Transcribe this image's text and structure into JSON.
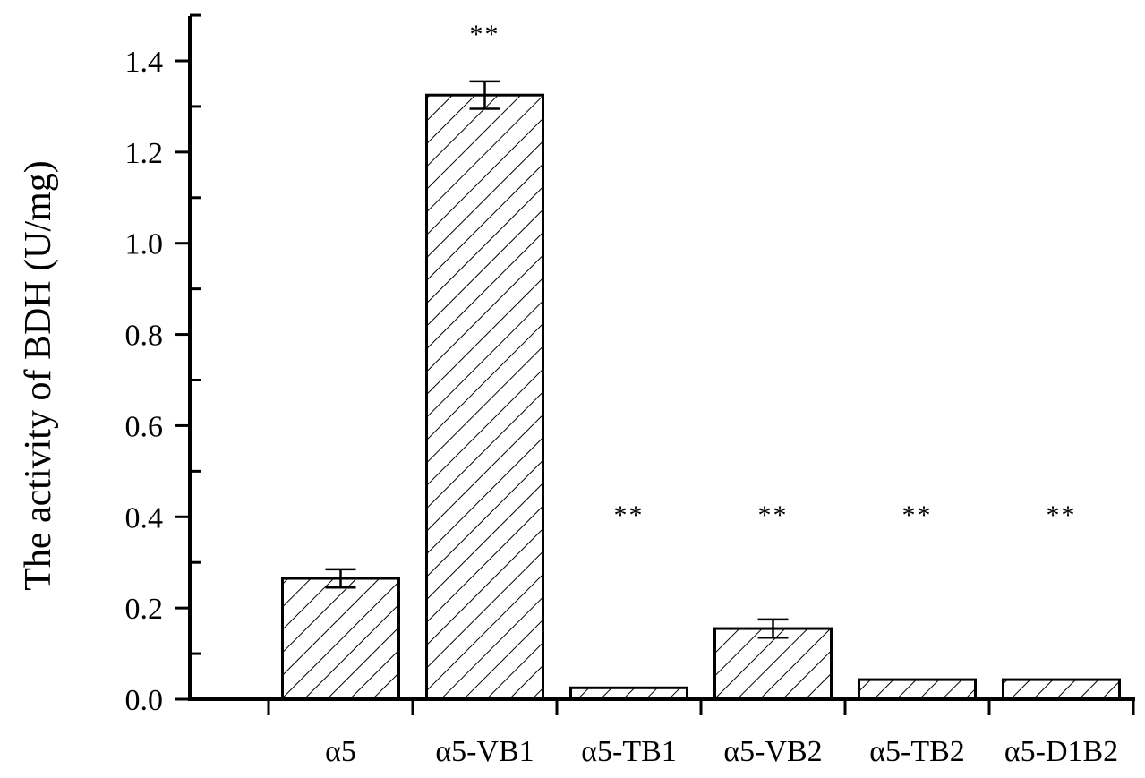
{
  "chart_data": {
    "type": "bar",
    "title": "",
    "xlabel": "",
    "ylabel": "The activity of BDH (U/mg)",
    "ylim": [
      0,
      1.5
    ],
    "yticks": [
      "0.0",
      "0.2",
      "0.4",
      "0.6",
      "0.8",
      "1.0",
      "1.2",
      "1.4"
    ],
    "categories": [
      "α5",
      "α5-VB1",
      "α5-TB1",
      "α5-VB2",
      "α5-TB2",
      "α5-D1B2"
    ],
    "values": [
      0.265,
      1.325,
      0.025,
      0.155,
      0.043,
      0.043
    ],
    "errors": [
      0.02,
      0.03,
      0.002,
      0.02,
      0.002,
      0.002
    ],
    "significance": [
      "",
      "**",
      "**",
      "**",
      "**",
      "**"
    ],
    "grid": false,
    "legend": "none",
    "bar_pattern": "diagonal-hatch",
    "colors": {
      "bar_fill": "#ffffff",
      "hatch": "#000000",
      "axis": "#000000"
    }
  }
}
